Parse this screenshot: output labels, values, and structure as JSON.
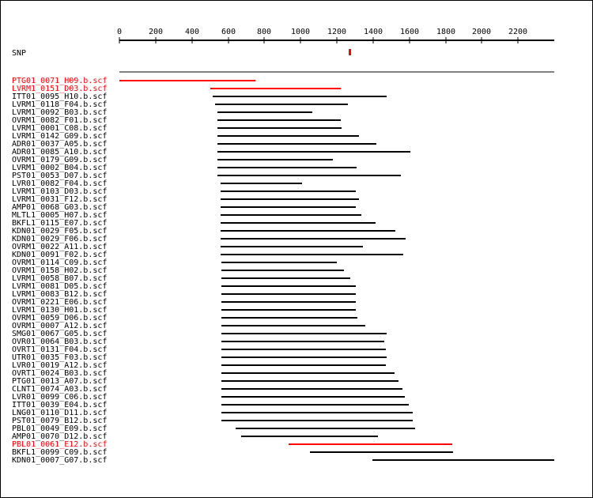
{
  "axis": {
    "ticks": [
      0,
      200,
      400,
      600,
      800,
      1000,
      1200,
      1400,
      1600,
      1800,
      2000,
      2200
    ],
    "min": 0,
    "max": 2400
  },
  "snp": {
    "label": "SNP",
    "position": 1268,
    "color": "#ff0000"
  },
  "colors": {
    "highlight": "#ff0000",
    "normal": "#000000"
  },
  "reads": [
    {
      "name": "PTG01_0071_H09.b.scf",
      "start": 0,
      "end": 750,
      "highlight": true
    },
    {
      "name": "LVRM1_0151_D03.b.scf",
      "start": 500,
      "end": 1220,
      "highlight": true
    },
    {
      "name": "ITT01_0095_H10.b.scf",
      "start": 515,
      "end": 1475,
      "highlight": false
    },
    {
      "name": "LVRM1_0118_F04.b.scf",
      "start": 530,
      "end": 1260,
      "highlight": false
    },
    {
      "name": "LVRM1_0092_B03.b.scf",
      "start": 540,
      "end": 1065,
      "highlight": false
    },
    {
      "name": "OVRM1_0082_F01.b.scf",
      "start": 540,
      "end": 1220,
      "highlight": false
    },
    {
      "name": "LVRM1_0001_C08.b.scf",
      "start": 540,
      "end": 1225,
      "highlight": false
    },
    {
      "name": "LVRM1_0142_G09.b.scf",
      "start": 540,
      "end": 1320,
      "highlight": false
    },
    {
      "name": "ADR01_0037_A05.b.scf",
      "start": 540,
      "end": 1420,
      "highlight": false
    },
    {
      "name": "ADR01_0085_A10.b.scf",
      "start": 540,
      "end": 1605,
      "highlight": false
    },
    {
      "name": "OVRM1_0179_G09.b.scf",
      "start": 540,
      "end": 1180,
      "highlight": false
    },
    {
      "name": "LVRM1_0002_B04.b.scf",
      "start": 540,
      "end": 1310,
      "highlight": false
    },
    {
      "name": "PST01_0053_D07.b.scf",
      "start": 540,
      "end": 1555,
      "highlight": false
    },
    {
      "name": "LVR01_0082_F04.b.scf",
      "start": 560,
      "end": 1010,
      "highlight": false
    },
    {
      "name": "LVRM1_0103_D03.b.scf",
      "start": 560,
      "end": 1305,
      "highlight": false
    },
    {
      "name": "LVRM1_0031_F12.b.scf",
      "start": 560,
      "end": 1320,
      "highlight": false
    },
    {
      "name": "AMP01_0068_G03.b.scf",
      "start": 560,
      "end": 1305,
      "highlight": false
    },
    {
      "name": "MLTL1_0005_H07.b.scf",
      "start": 560,
      "end": 1335,
      "highlight": false
    },
    {
      "name": "BKFL1_0115_E07.b.scf",
      "start": 560,
      "end": 1415,
      "highlight": false
    },
    {
      "name": "KDN01_0029_F05.b.scf",
      "start": 560,
      "end": 1525,
      "highlight": false
    },
    {
      "name": "KDN01_0029_F06.b.scf",
      "start": 560,
      "end": 1580,
      "highlight": false
    },
    {
      "name": "OVRM1_0022_A11.b.scf",
      "start": 560,
      "end": 1345,
      "highlight": false
    },
    {
      "name": "KDN01_0091_F02.b.scf",
      "start": 560,
      "end": 1565,
      "highlight": false
    },
    {
      "name": "OVRM1_0114_C09.b.scf",
      "start": 565,
      "end": 1200,
      "highlight": false
    },
    {
      "name": "OVRM1_0158_H02.b.scf",
      "start": 565,
      "end": 1240,
      "highlight": false
    },
    {
      "name": "LVRM1_0058_B07.b.scf",
      "start": 565,
      "end": 1275,
      "highlight": false
    },
    {
      "name": "LVRM1_0081_D05.b.scf",
      "start": 565,
      "end": 1305,
      "highlight": false
    },
    {
      "name": "LVRM1_0083_B12.b.scf",
      "start": 565,
      "end": 1305,
      "highlight": false
    },
    {
      "name": "OVRM1_0221_E06.b.scf",
      "start": 565,
      "end": 1305,
      "highlight": false
    },
    {
      "name": "LVRM1_0130_H01.b.scf",
      "start": 565,
      "end": 1305,
      "highlight": false
    },
    {
      "name": "OVRM1_0059_D06.b.scf",
      "start": 565,
      "end": 1315,
      "highlight": false
    },
    {
      "name": "OVRM1_0007_A12.b.scf",
      "start": 565,
      "end": 1355,
      "highlight": false
    },
    {
      "name": "SMG01_0067_G05.b.scf",
      "start": 565,
      "end": 1475,
      "highlight": false
    },
    {
      "name": "OVR01_0064_B03.b.scf",
      "start": 565,
      "end": 1460,
      "highlight": false
    },
    {
      "name": "OVRT1_0131_F04.b.scf",
      "start": 565,
      "end": 1470,
      "highlight": false
    },
    {
      "name": "UTR01_0035_F03.b.scf",
      "start": 565,
      "end": 1475,
      "highlight": false
    },
    {
      "name": "LVR01_0019_A12.b.scf",
      "start": 565,
      "end": 1470,
      "highlight": false
    },
    {
      "name": "OVRT1_0024_B03.b.scf",
      "start": 565,
      "end": 1520,
      "highlight": false
    },
    {
      "name": "PTG01_0013_A07.b.scf",
      "start": 565,
      "end": 1540,
      "highlight": false
    },
    {
      "name": "CLNT1_0074_A03.b.scf",
      "start": 565,
      "end": 1560,
      "highlight": false
    },
    {
      "name": "LVR01_0099_C06.b.scf",
      "start": 565,
      "end": 1575,
      "highlight": false
    },
    {
      "name": "ITT01_0039_E04.b.scf",
      "start": 565,
      "end": 1595,
      "highlight": false
    },
    {
      "name": "LNG01_0110_D11.b.scf",
      "start": 565,
      "end": 1620,
      "highlight": false
    },
    {
      "name": "PST01_0079_B12.b.scf",
      "start": 565,
      "end": 1620,
      "highlight": false
    },
    {
      "name": "PBL01_0049_E09.b.scf",
      "start": 640,
      "end": 1630,
      "highlight": false
    },
    {
      "name": "AMP01_0070_D12.b.scf",
      "start": 670,
      "end": 1425,
      "highlight": false
    },
    {
      "name": "PBL01_0061_E12.b.scf",
      "start": 935,
      "end": 1835,
      "highlight": true
    },
    {
      "name": "BKFL1_0099_C09.b.scf",
      "start": 1050,
      "end": 1840,
      "highlight": false
    },
    {
      "name": "KDN01_0007_G07.b.scf",
      "start": 1395,
      "end": 2400,
      "highlight": false
    }
  ]
}
